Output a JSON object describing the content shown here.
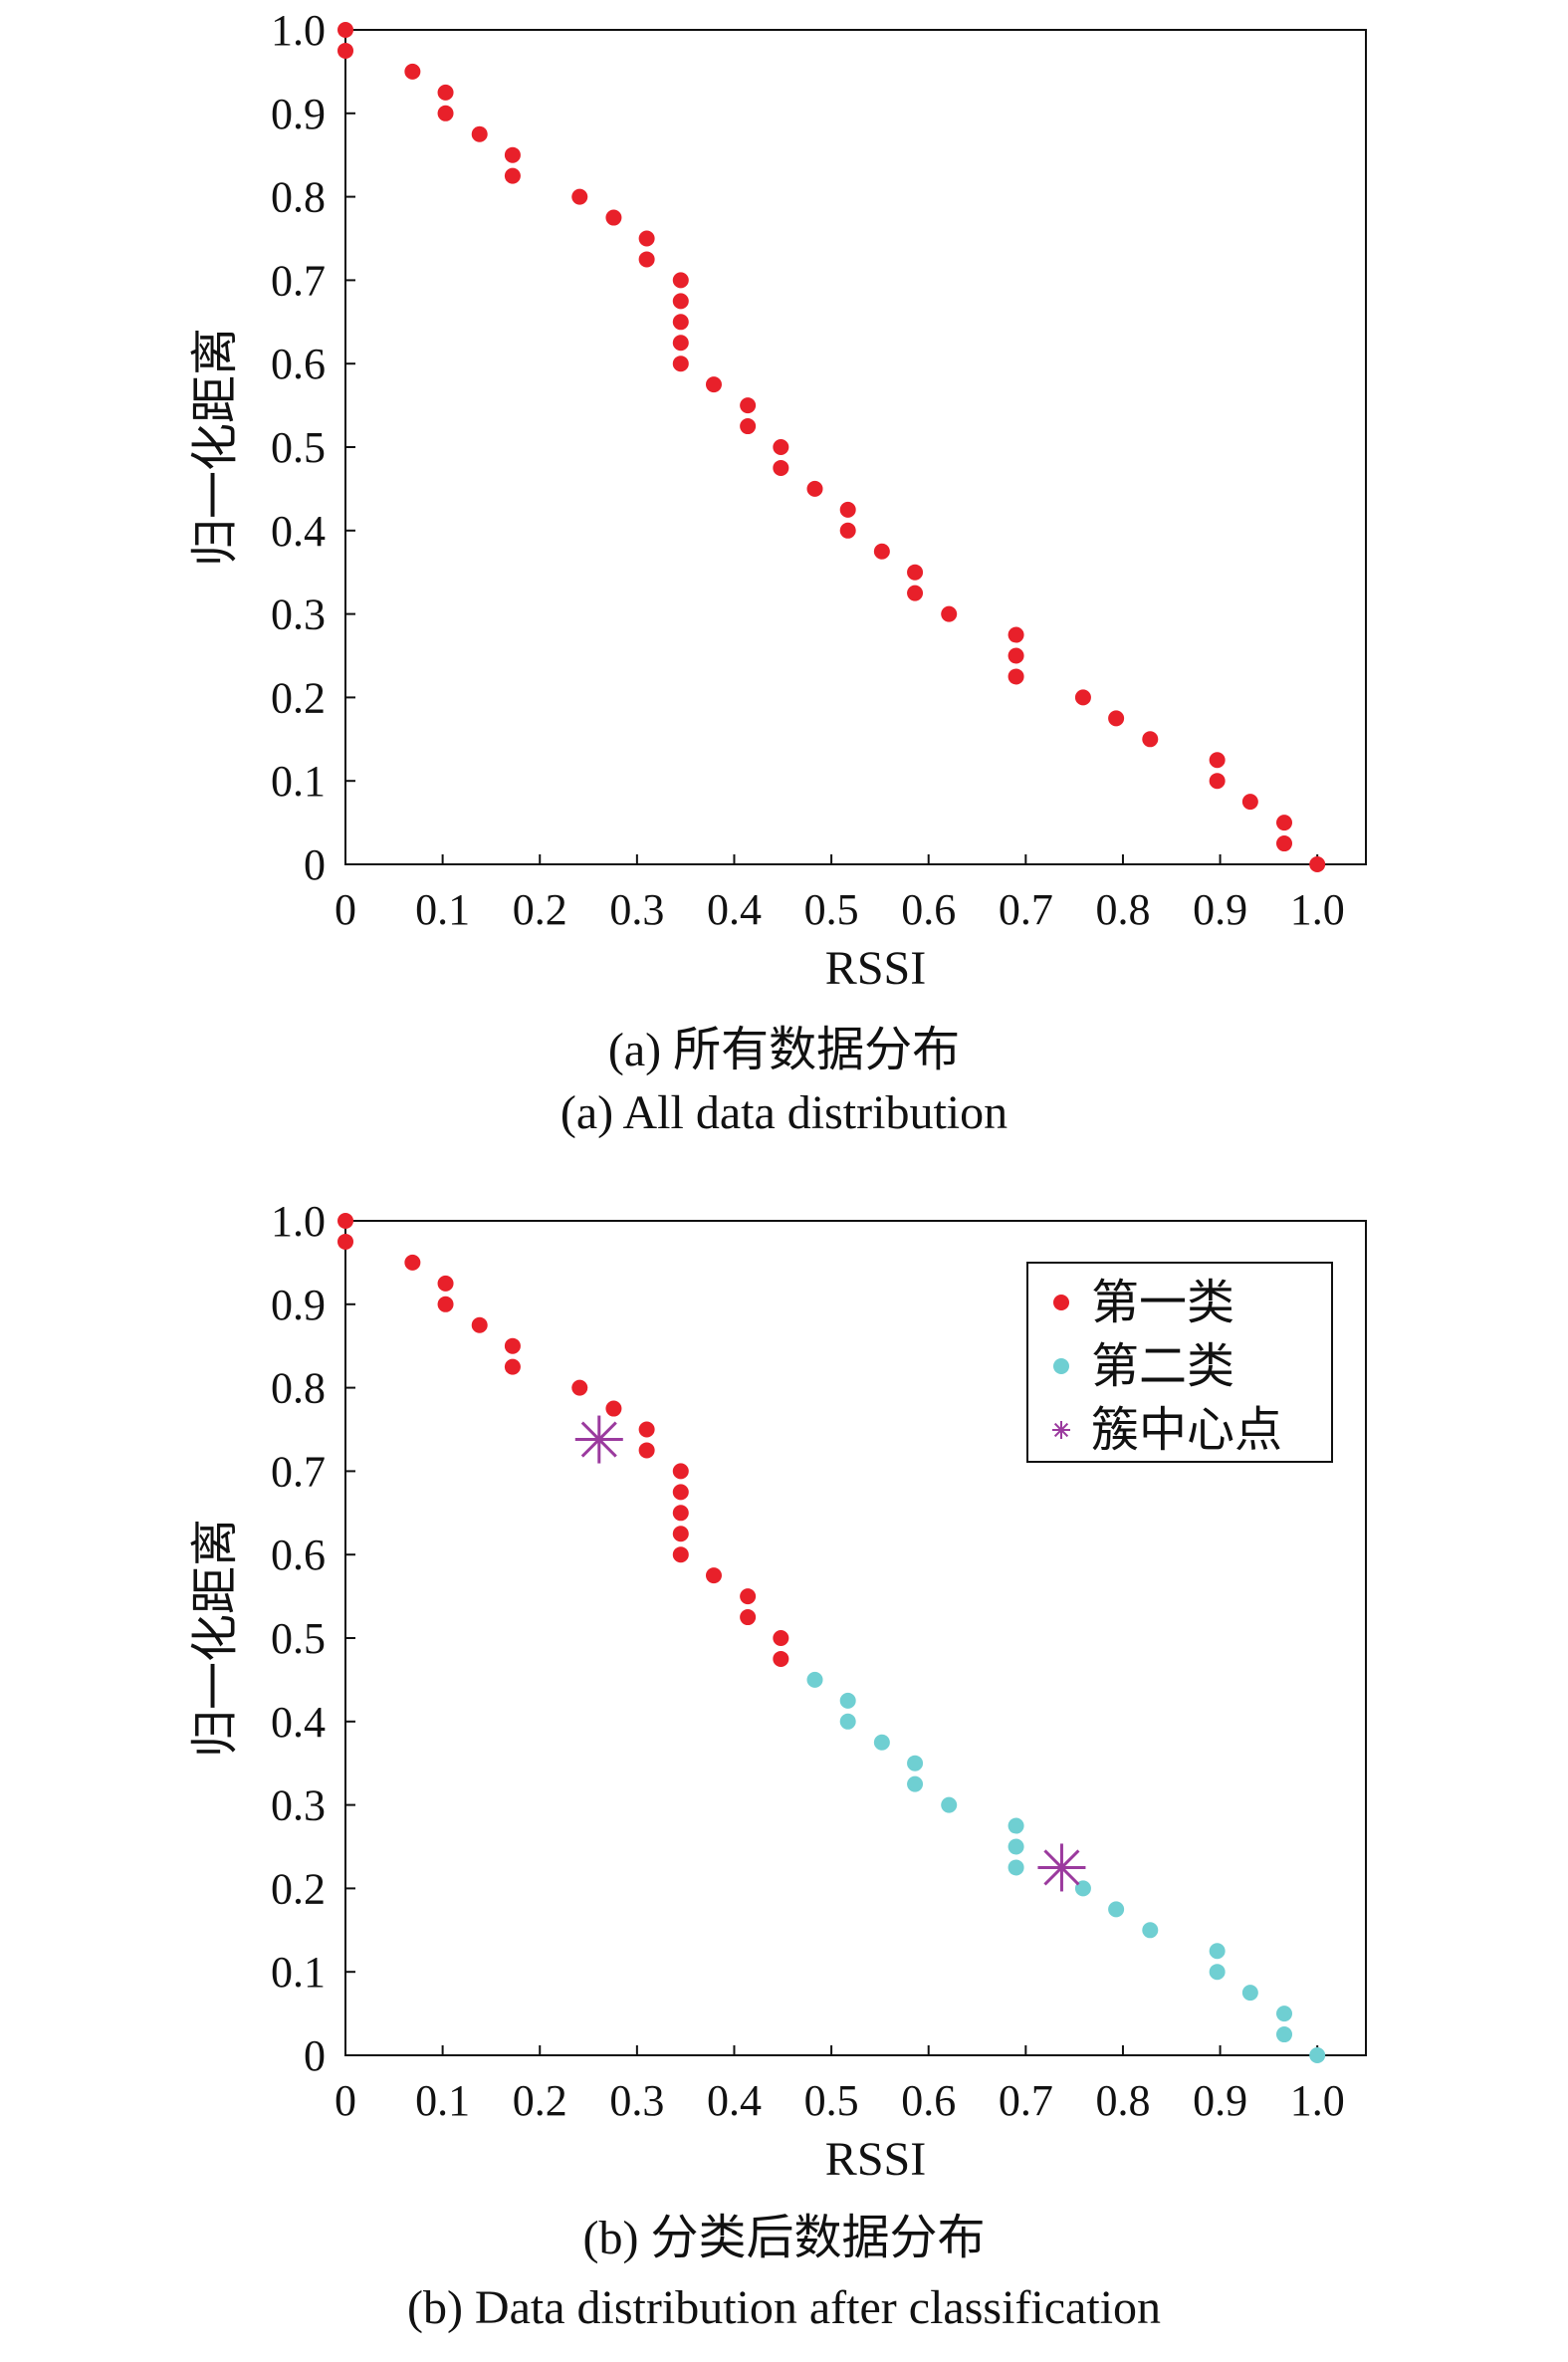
{
  "figure": {
    "caption_a_cn": "(a) 所有数据分布",
    "caption_a_en": "(a) All data distribution",
    "caption_b_cn": "(b) 分类后数据分布",
    "caption_b_en": "(b) Data distribution after classification"
  },
  "chart_data": [
    {
      "type": "scatter",
      "xlabel": "RSSI",
      "ylabel": "归一化距离",
      "xlim": [
        0,
        1.05
      ],
      "ylim": [
        0,
        1.0
      ],
      "xticks": [
        "0",
        "0.1",
        "0.2",
        "0.3",
        "0.4",
        "0.5",
        "0.6",
        "0.7",
        "0.8",
        "0.9",
        "1.0"
      ],
      "yticks": [
        "0",
        "0.1",
        "0.2",
        "0.3",
        "0.4",
        "0.5",
        "0.6",
        "0.7",
        "0.8",
        "0.9",
        "1.0"
      ],
      "grid": false,
      "colors": {
        "points": "#e8202a"
      },
      "points": [
        [
          0,
          1.0
        ],
        [
          0,
          0.975
        ],
        [
          0.069,
          0.95
        ],
        [
          0.103,
          0.925
        ],
        [
          0.103,
          0.9
        ],
        [
          0.138,
          0.875
        ],
        [
          0.172,
          0.85
        ],
        [
          0.172,
          0.825
        ],
        [
          0.241,
          0.8
        ],
        [
          0.276,
          0.775
        ],
        [
          0.31,
          0.75
        ],
        [
          0.31,
          0.725
        ],
        [
          0.345,
          0.7
        ],
        [
          0.345,
          0.675
        ],
        [
          0.345,
          0.65
        ],
        [
          0.345,
          0.625
        ],
        [
          0.345,
          0.6
        ],
        [
          0.379,
          0.575
        ],
        [
          0.414,
          0.55
        ],
        [
          0.414,
          0.525
        ],
        [
          0.448,
          0.5
        ],
        [
          0.448,
          0.475
        ],
        [
          0.483,
          0.45
        ],
        [
          0.517,
          0.425
        ],
        [
          0.517,
          0.4
        ],
        [
          0.552,
          0.375
        ],
        [
          0.586,
          0.35
        ],
        [
          0.586,
          0.325
        ],
        [
          0.621,
          0.3
        ],
        [
          0.69,
          0.275
        ],
        [
          0.69,
          0.25
        ],
        [
          0.69,
          0.225
        ],
        [
          0.759,
          0.2
        ],
        [
          0.793,
          0.175
        ],
        [
          0.828,
          0.15
        ],
        [
          0.897,
          0.125
        ],
        [
          0.897,
          0.1
        ],
        [
          0.931,
          0.075
        ],
        [
          0.966,
          0.05
        ],
        [
          0.966,
          0.025
        ],
        [
          1.0,
          0.0
        ]
      ]
    },
    {
      "type": "scatter",
      "xlabel": "RSSI",
      "ylabel": "归一化距离",
      "xlim": [
        0,
        1.05
      ],
      "ylim": [
        0,
        1.0
      ],
      "xticks": [
        "0",
        "0.1",
        "0.2",
        "0.3",
        "0.4",
        "0.5",
        "0.6",
        "0.7",
        "0.8",
        "0.9",
        "1.0"
      ],
      "yticks": [
        "0",
        "0.1",
        "0.2",
        "0.3",
        "0.4",
        "0.5",
        "0.6",
        "0.7",
        "0.8",
        "0.9",
        "1.0"
      ],
      "grid": false,
      "legend_position": "top-right",
      "series": [
        {
          "name": "第一类",
          "color": "#e8202a",
          "marker": "dot",
          "points": [
            [
              0,
              1.0
            ],
            [
              0,
              0.975
            ],
            [
              0.069,
              0.95
            ],
            [
              0.103,
              0.925
            ],
            [
              0.103,
              0.9
            ],
            [
              0.138,
              0.875
            ],
            [
              0.172,
              0.85
            ],
            [
              0.172,
              0.825
            ],
            [
              0.241,
              0.8
            ],
            [
              0.276,
              0.775
            ],
            [
              0.31,
              0.75
            ],
            [
              0.31,
              0.725
            ],
            [
              0.345,
              0.7
            ],
            [
              0.345,
              0.675
            ],
            [
              0.345,
              0.65
            ],
            [
              0.345,
              0.625
            ],
            [
              0.345,
              0.6
            ],
            [
              0.379,
              0.575
            ],
            [
              0.414,
              0.55
            ],
            [
              0.414,
              0.525
            ],
            [
              0.448,
              0.5
            ],
            [
              0.448,
              0.475
            ]
          ]
        },
        {
          "name": "第二类",
          "color": "#6fcfd2",
          "marker": "dot",
          "points": [
            [
              0.483,
              0.45
            ],
            [
              0.517,
              0.425
            ],
            [
              0.517,
              0.4
            ],
            [
              0.552,
              0.375
            ],
            [
              0.586,
              0.35
            ],
            [
              0.586,
              0.325
            ],
            [
              0.621,
              0.3
            ],
            [
              0.69,
              0.275
            ],
            [
              0.69,
              0.25
            ],
            [
              0.69,
              0.225
            ],
            [
              0.759,
              0.2
            ],
            [
              0.793,
              0.175
            ],
            [
              0.828,
              0.15
            ],
            [
              0.897,
              0.125
            ],
            [
              0.897,
              0.1
            ],
            [
              0.931,
              0.075
            ],
            [
              0.966,
              0.05
            ],
            [
              0.966,
              0.025
            ],
            [
              1.0,
              0.0
            ]
          ]
        },
        {
          "name": "簇中心点",
          "color": "#9b3a9e",
          "marker": "asterisk",
          "points": [
            [
              0.261,
              0.738
            ],
            [
              0.737,
              0.225
            ]
          ]
        }
      ]
    }
  ]
}
